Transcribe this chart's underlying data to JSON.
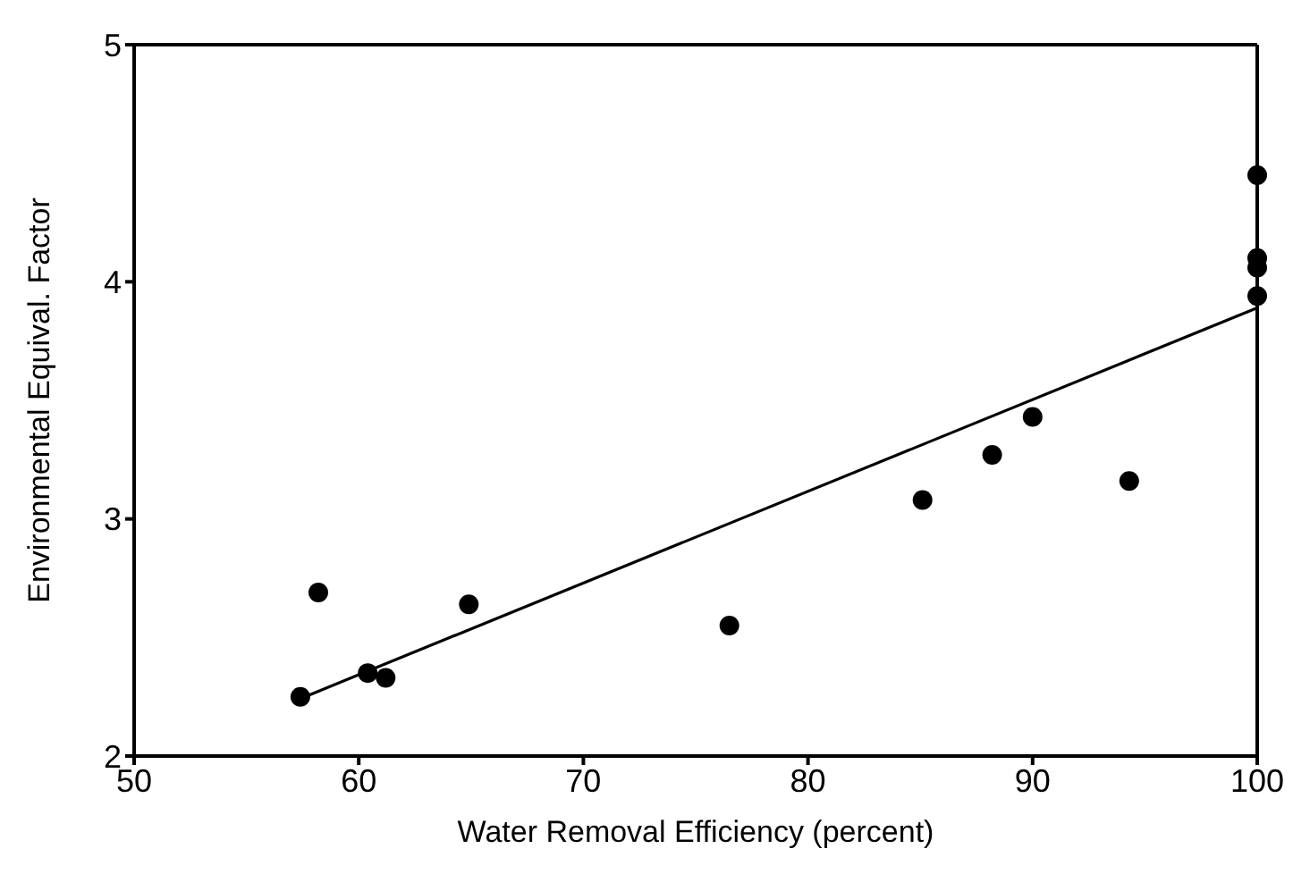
{
  "chart_data": {
    "type": "scatter",
    "xlabel": "Water Removal Efficiency (percent)",
    "ylabel": "Environmental Equival. Factor",
    "xlim": [
      50,
      100
    ],
    "xticks": [
      50,
      60,
      70,
      80,
      90,
      100
    ],
    "ylim": [
      2,
      5
    ],
    "yticks": [
      2,
      3,
      4,
      5
    ],
    "legend": false,
    "marker": "circle",
    "series": [
      {
        "color": "#000000",
        "x": [
          57.4,
          58.2,
          60.4,
          61.2,
          64.9,
          76.5,
          85.1,
          88.2,
          90.0,
          94.3,
          100,
          100,
          100,
          100
        ],
        "values": [
          2.25,
          2.69,
          2.35,
          2.33,
          2.64,
          2.55,
          3.08,
          3.27,
          3.43,
          3.16,
          4.45,
          4.1,
          4.06,
          3.94
        ]
      },
      {
        "type": "line",
        "color": "#000000",
        "x": [
          57.6,
          100
        ],
        "values": [
          2.25,
          3.89
        ],
        "marker": "none",
        "line_style": "solid"
      }
    ]
  }
}
